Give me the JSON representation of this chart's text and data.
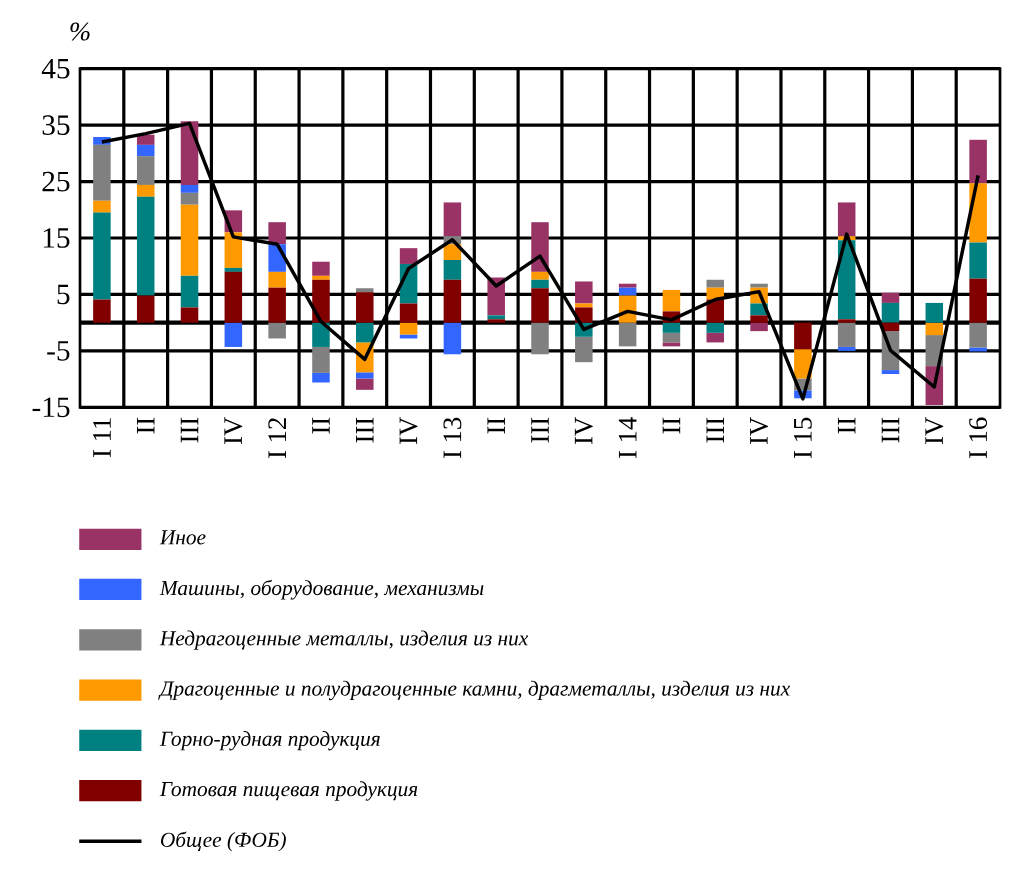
{
  "chart_data": {
    "type": "bar",
    "stacked": true,
    "ylabel": "%",
    "categories": [
      "I 11",
      "II",
      "III",
      "IV",
      "I 12",
      "II",
      "III",
      "IV",
      "I 13",
      "II",
      "III",
      "IV",
      "I 14",
      "II",
      "III",
      "IV",
      "I 15",
      "II",
      "III",
      "IV",
      "I 16"
    ],
    "ylim": [
      -15,
      45
    ],
    "yticks": [
      -15,
      -5,
      5,
      15,
      25,
      35,
      45
    ],
    "grid": true,
    "legend": "bottom",
    "ref_lines": [
      {
        "axis": "y",
        "value": 0,
        "color": "#000000"
      }
    ],
    "series": [
      {
        "name": "Готовая пищевая продукция",
        "color": "#800000",
        "values": [
          4.1,
          4.8,
          2.7,
          9.0,
          6.2,
          7.6,
          5.4,
          3.4,
          7.6,
          0.6,
          6.1,
          2.7,
          null,
          2.0,
          4.1,
          1.3,
          -4.7,
          0.6,
          -1.5,
          null,
          7.8
        ]
      },
      {
        "name": "Горно-рудная продукция",
        "color": "#008080",
        "values": [
          15.4,
          17.5,
          5.6,
          0.7,
          null,
          -4.3,
          -3.5,
          7.0,
          3.5,
          0.7,
          1.5,
          -2.5,
          null,
          -1.8,
          -1.8,
          2.1,
          null,
          14.0,
          3.5,
          3.5,
          6.4
        ]
      },
      {
        "name": "Драгоценные и полудрагоценные камни, драгметаллы, изделия из них",
        "color": "#ff9900",
        "values": [
          2.1,
          2.1,
          12.6,
          6.3,
          2.8,
          0.7,
          -5.3,
          -2.1,
          2.8,
          null,
          1.4,
          0.7,
          4.8,
          3.8,
          2.1,
          2.8,
          -5.2,
          0.7,
          null,
          -2.2,
          10.5
        ]
      },
      {
        "name": "Недрагоценные металлы, изделия из них",
        "color": "#808080",
        "values": [
          9.9,
          5.1,
          2.1,
          null,
          -2.8,
          -4.6,
          0.7,
          null,
          1.4,
          null,
          -5.6,
          -4.5,
          -4.2,
          -1.7,
          1.4,
          0.7,
          -2.1,
          -4.3,
          -6.9,
          -5.5,
          -4.4
        ]
      },
      {
        "name": "Машины, оборудование, механизмы",
        "color": "#3366ff",
        "values": [
          1.4,
          2.0,
          1.4,
          -4.3,
          4.9,
          -1.7,
          -1.1,
          -0.7,
          -5.6,
          null,
          null,
          null,
          1.4,
          null,
          null,
          null,
          -1.4,
          -0.7,
          -0.7,
          null,
          -0.7
        ]
      },
      {
        "name": "Иное",
        "color": "#993366",
        "values": [
          null,
          1.8,
          11.3,
          3.9,
          3.9,
          2.5,
          -2.0,
          2.8,
          6.0,
          6.7,
          8.8,
          3.9,
          0.7,
          -0.7,
          -1.7,
          -1.5,
          null,
          6.0,
          1.8,
          -6.9,
          7.7
        ]
      },
      {
        "name": "Общее (ФОБ)",
        "type": "line",
        "color": "#000000",
        "values": [
          32.0,
          33.5,
          35.3,
          15.2,
          13.9,
          0.2,
          -6.5,
          9.6,
          14.7,
          6.5,
          11.8,
          -1.2,
          2.0,
          0.5,
          4.1,
          5.5,
          -13.5,
          15.7,
          -4.9,
          -11.4,
          26.1
        ]
      }
    ]
  }
}
